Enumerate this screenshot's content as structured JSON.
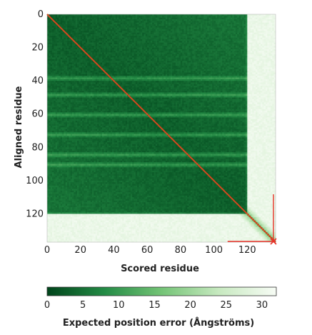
{
  "chart_data": {
    "type": "heatmap",
    "title": "",
    "xlabel": "Scored residue",
    "ylabel": "Aligned residue",
    "n_residues": 137,
    "x_ticks": [
      0,
      20,
      40,
      60,
      80,
      100,
      120
    ],
    "y_ticks": [
      0,
      20,
      40,
      60,
      80,
      100,
      120
    ],
    "xlim": [
      0,
      137
    ],
    "ylim": [
      0,
      137
    ],
    "y_axis_inverted": true,
    "colorbar": {
      "label": "Expected position error (Ångströms)",
      "ticks": [
        0,
        5,
        10,
        15,
        20,
        25,
        30
      ],
      "range": [
        0,
        32
      ],
      "colors": [
        "#00441b",
        "#238b45",
        "#74c476",
        "#c7e9c0",
        "#f7fcf5"
      ]
    },
    "matrix_summary": {
      "diagonal_error": 0,
      "core_residues": [
        0,
        118
      ],
      "core_error": 3,
      "weak_bands_rows": [
        38,
        48,
        60,
        72,
        84,
        90
      ],
      "weak_band_error": 9,
      "terminal_residues": [
        120,
        137
      ],
      "terminal_error": 30
    },
    "overlay": {
      "diagonal_color": "#d44a1f",
      "marker_color": "#e8322a",
      "marker_residue": 137
    }
  }
}
